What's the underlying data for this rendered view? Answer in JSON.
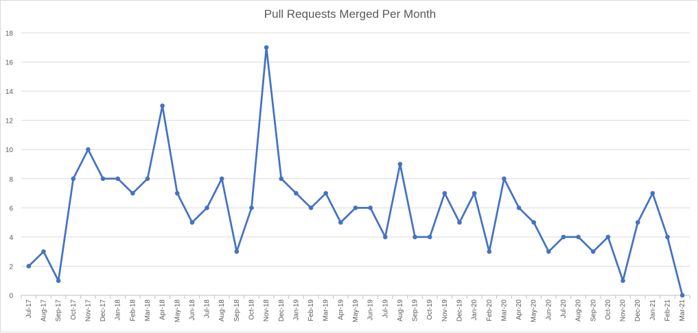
{
  "chart_data": {
    "type": "line",
    "title": "Pull Requests Merged Per Month",
    "xlabel": "",
    "ylabel": "",
    "ylim": [
      0,
      18
    ],
    "y_ticks": [
      "0",
      "2",
      "4",
      "6",
      "8",
      "10",
      "12",
      "14",
      "16",
      "18"
    ],
    "grid": true,
    "legend": "none",
    "color": "#4472c4",
    "categories": [
      "Jul-17",
      "Aug-17",
      "Sep-17",
      "Oct-17",
      "Nov-17",
      "Dec-17",
      "Jan-18",
      "Feb-18",
      "Mar-18",
      "Apr-18",
      "May-18",
      "Jun-18",
      "Jul-18",
      "Aug-18",
      "Sep-18",
      "Oct-18",
      "Nov-18",
      "Dec-18",
      "Jan-19",
      "Feb-19",
      "Mar-19",
      "Apr-19",
      "May-19",
      "Jun-19",
      "Jul-19",
      "Aug-19",
      "Sep-19",
      "Oct-19",
      "Nov-19",
      "Dec-19",
      "Jan-20",
      "Feb-20",
      "Mar-20",
      "Apr-20",
      "May-20",
      "Jun-20",
      "Jul-20",
      "Aug-20",
      "Sep-20",
      "Oct-20",
      "Nov-20",
      "Dec-20",
      "Jan-21",
      "Feb-21",
      "Mar-21"
    ],
    "values": [
      2,
      3,
      1,
      8,
      10,
      8,
      8,
      7,
      8,
      13,
      7,
      5,
      6,
      8,
      3,
      6,
      17,
      8,
      7,
      6,
      7,
      5,
      6,
      6,
      4,
      9,
      4,
      4,
      7,
      5,
      7,
      3,
      8,
      6,
      5,
      3,
      4,
      4,
      3,
      4,
      1,
      5,
      7,
      4,
      0
    ]
  }
}
